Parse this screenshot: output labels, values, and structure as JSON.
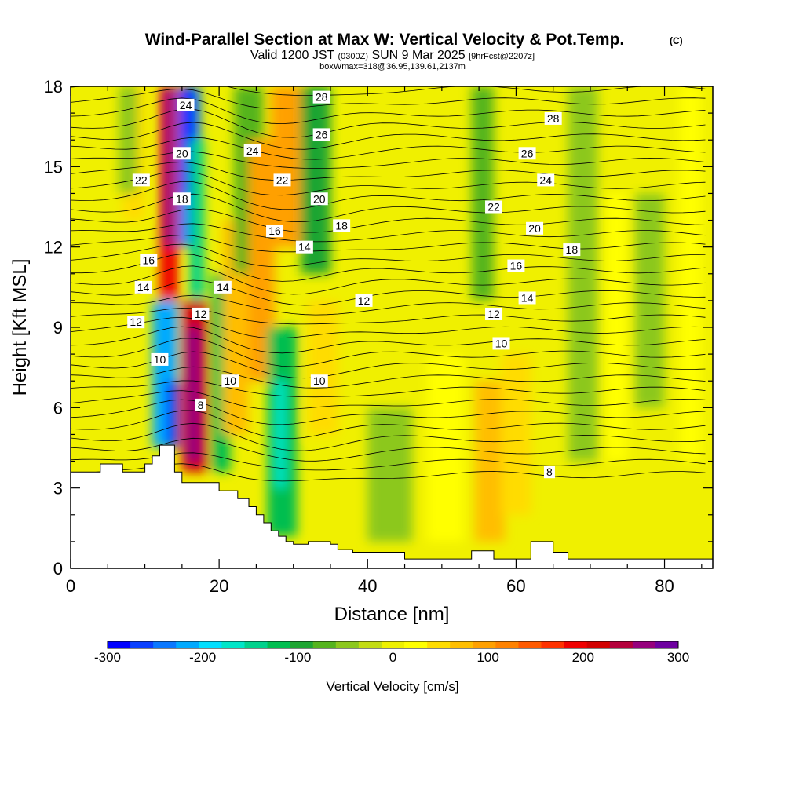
{
  "title": {
    "main": "Wind-Parallel Section at Max W: Vertical Velocity & Pot.Temp.",
    "copyright": "(C)",
    "valid_prefix": "Valid 1200 JST",
    "valid_utc": "(0300Z)",
    "valid_date": "SUN 9 Mar 2025",
    "forecast": "[9hrFcst@2207z]",
    "box_info": "boxWmax=318@36.95,139.61,2137m"
  },
  "chart_data": {
    "type": "heatmap",
    "xlabel": "Distance [nm]",
    "ylabel": "Height [Kft MSL]",
    "xlim": [
      0,
      86.5
    ],
    "ylim": [
      0,
      18
    ],
    "x_ticks": [
      0,
      20,
      40,
      60,
      80
    ],
    "y_ticks": [
      0,
      3,
      6,
      9,
      12,
      15,
      18
    ],
    "terrain_kft": {
      "x": [
        0,
        4,
        4,
        7,
        7,
        10,
        10,
        11,
        11,
        12,
        12,
        14,
        14,
        15,
        15,
        15.5,
        15.5,
        20,
        20,
        22.5,
        22.5,
        24,
        24,
        25,
        25,
        26,
        26,
        27,
        27,
        28,
        28,
        29,
        29,
        30,
        30,
        32,
        32,
        35,
        35,
        36,
        36,
        38,
        38,
        45,
        45,
        54,
        54,
        57,
        57,
        62,
        62,
        65,
        65,
        67,
        67,
        86.5
      ],
      "y": [
        3.6,
        3.6,
        3.9,
        3.9,
        3.6,
        3.6,
        3.9,
        3.9,
        4.2,
        4.2,
        4.6,
        4.6,
        3.6,
        3.6,
        3.2,
        3.2,
        3.2,
        3.2,
        2.9,
        2.9,
        2.6,
        2.6,
        2.3,
        2.3,
        2.0,
        2.0,
        1.7,
        1.7,
        1.4,
        1.4,
        1.2,
        1.2,
        1.0,
        1.0,
        0.9,
        0.9,
        1.0,
        1.0,
        0.9,
        0.9,
        0.7,
        0.7,
        0.6,
        0.6,
        0.35,
        0.35,
        0.65,
        0.65,
        0.35,
        0.35,
        1.0,
        1.0,
        0.6,
        0.6,
        0.35,
        0.35
      ]
    },
    "vertical_velocity_cells": [
      {
        "x": [
          12.0,
          14.5
        ],
        "y": [
          9,
          18
        ],
        "w": 220
      },
      {
        "x": [
          12.5,
          14.0
        ],
        "y": [
          12,
          18
        ],
        "w": 290
      },
      {
        "x": [
          14.5,
          17.5
        ],
        "y": [
          12,
          18
        ],
        "w": -240
      },
      {
        "x": [
          15.0,
          16.5
        ],
        "y": [
          14,
          18
        ],
        "w": -280
      },
      {
        "x": [
          16.0,
          18.0
        ],
        "y": [
          8,
          16
        ],
        "w": -150
      },
      {
        "x": [
          11.0,
          14.5
        ],
        "y": [
          4.5,
          10
        ],
        "w": -220
      },
      {
        "x": [
          13.0,
          14.5
        ],
        "y": [
          4.5,
          7
        ],
        "w": -290
      },
      {
        "x": [
          15.0,
          18.5
        ],
        "y": [
          3.6,
          10
        ],
        "w": 240
      },
      {
        "x": [
          15.5,
          17.5
        ],
        "y": [
          4,
          9
        ],
        "w": 290
      },
      {
        "x": [
          19.0,
          21.5
        ],
        "y": [
          3.6,
          11
        ],
        "w": -110
      },
      {
        "x": [
          20.5,
          24.0
        ],
        "y": [
          5,
          13
        ],
        "w": 90
      },
      {
        "x": [
          22.0,
          26.0
        ],
        "y": [
          11,
          18
        ],
        "w": -70
      },
      {
        "x": [
          24.0,
          27.5
        ],
        "y": [
          7,
          16
        ],
        "w": 120
      },
      {
        "x": [
          26.5,
          30.5
        ],
        "y": [
          1.2,
          9
        ],
        "w": -120
      },
      {
        "x": [
          27.5,
          29.0
        ],
        "y": [
          3,
          7
        ],
        "w": -160
      },
      {
        "x": [
          27.0,
          31.0
        ],
        "y": [
          12,
          18
        ],
        "w": 110
      },
      {
        "x": [
          31.0,
          35.0
        ],
        "y": [
          11,
          18
        ],
        "w": -80
      },
      {
        "x": [
          32.0,
          36.0
        ],
        "y": [
          5,
          10
        ],
        "w": 60
      },
      {
        "x": [
          7.0,
          10.0
        ],
        "y": [
          13,
          18
        ],
        "w": 50
      },
      {
        "x": [
          6.5,
          9.0
        ],
        "y": [
          14,
          18
        ],
        "w": -40
      },
      {
        "x": [
          40.0,
          46.0
        ],
        "y": [
          1,
          6
        ],
        "w": -40
      },
      {
        "x": [
          48.0,
          53.0
        ],
        "y": [
          1,
          8
        ],
        "w": 30
      },
      {
        "x": [
          54.0,
          57.0
        ],
        "y": [
          10,
          18
        ],
        "w": -60
      },
      {
        "x": [
          54.5,
          58.5
        ],
        "y": [
          1,
          7
        ],
        "w": 90
      },
      {
        "x": [
          58.0,
          62.0
        ],
        "y": [
          2,
          8
        ],
        "w": 50
      },
      {
        "x": [
          67.0,
          71.0
        ],
        "y": [
          4,
          18
        ],
        "w": -40
      },
      {
        "x": [
          72.0,
          75.0
        ],
        "y": [
          4,
          14
        ],
        "w": 30
      },
      {
        "x": [
          76.0,
          80.0
        ],
        "y": [
          6,
          14
        ],
        "w": -30
      },
      {
        "x": [
          82.0,
          85.0
        ],
        "y": [
          4,
          18
        ],
        "w": 40
      }
    ],
    "theta_contour_labels": [
      {
        "x": 15.5,
        "y": 17.3,
        "label": "24"
      },
      {
        "x": 15.0,
        "y": 15.5,
        "label": "20"
      },
      {
        "x": 9.5,
        "y": 14.5,
        "label": "22"
      },
      {
        "x": 15.0,
        "y": 13.8,
        "label": "18"
      },
      {
        "x": 33.8,
        "y": 17.6,
        "label": "28"
      },
      {
        "x": 33.8,
        "y": 16.2,
        "label": "26"
      },
      {
        "x": 24.5,
        "y": 15.6,
        "label": "24"
      },
      {
        "x": 28.5,
        "y": 14.5,
        "label": "22"
      },
      {
        "x": 33.5,
        "y": 13.8,
        "label": "20"
      },
      {
        "x": 36.5,
        "y": 12.8,
        "label": "18"
      },
      {
        "x": 27.5,
        "y": 12.6,
        "label": "16"
      },
      {
        "x": 31.5,
        "y": 12.0,
        "label": "14"
      },
      {
        "x": 10.5,
        "y": 11.5,
        "label": "16"
      },
      {
        "x": 9.8,
        "y": 10.5,
        "label": "14"
      },
      {
        "x": 8.8,
        "y": 9.2,
        "label": "12"
      },
      {
        "x": 20.5,
        "y": 10.5,
        "label": "14"
      },
      {
        "x": 17.5,
        "y": 9.5,
        "label": "12"
      },
      {
        "x": 12.0,
        "y": 7.8,
        "label": "10"
      },
      {
        "x": 21.5,
        "y": 7.0,
        "label": "10"
      },
      {
        "x": 17.5,
        "y": 6.1,
        "label": "8"
      },
      {
        "x": 33.5,
        "y": 7.0,
        "label": "10"
      },
      {
        "x": 39.5,
        "y": 10.0,
        "label": "12"
      },
      {
        "x": 65.0,
        "y": 16.8,
        "label": "28"
      },
      {
        "x": 61.5,
        "y": 15.5,
        "label": "26"
      },
      {
        "x": 64.0,
        "y": 14.5,
        "label": "24"
      },
      {
        "x": 57.0,
        "y": 13.5,
        "label": "22"
      },
      {
        "x": 62.5,
        "y": 12.7,
        "label": "20"
      },
      {
        "x": 67.5,
        "y": 11.9,
        "label": "18"
      },
      {
        "x": 60.0,
        "y": 11.3,
        "label": "16"
      },
      {
        "x": 61.5,
        "y": 10.1,
        "label": "14"
      },
      {
        "x": 57.0,
        "y": 9.5,
        "label": "12"
      },
      {
        "x": 58.0,
        "y": 8.4,
        "label": "10"
      },
      {
        "x": 64.5,
        "y": 3.6,
        "label": "8"
      }
    ],
    "colorbar": {
      "min": -300,
      "max": 300,
      "step": 25,
      "tick_labels": [
        "-300",
        "-200",
        "-100",
        "0",
        "100",
        "200",
        "300"
      ],
      "title": "Vertical Velocity [cm/s]",
      "colors": [
        "#0000ff",
        "#0a40ff",
        "#0a78ff",
        "#00aaff",
        "#00dfff",
        "#00e6c8",
        "#00d28c",
        "#00be50",
        "#1ea532",
        "#55b41e",
        "#8cc81e",
        "#c3dc14",
        "#eef000",
        "#ffff00",
        "#ffdc00",
        "#ffbe00",
        "#ffa000",
        "#ff8200",
        "#ff5a00",
        "#ff3200",
        "#f00000",
        "#d20000",
        "#b4003c",
        "#96007d",
        "#6e00a0"
      ]
    }
  }
}
